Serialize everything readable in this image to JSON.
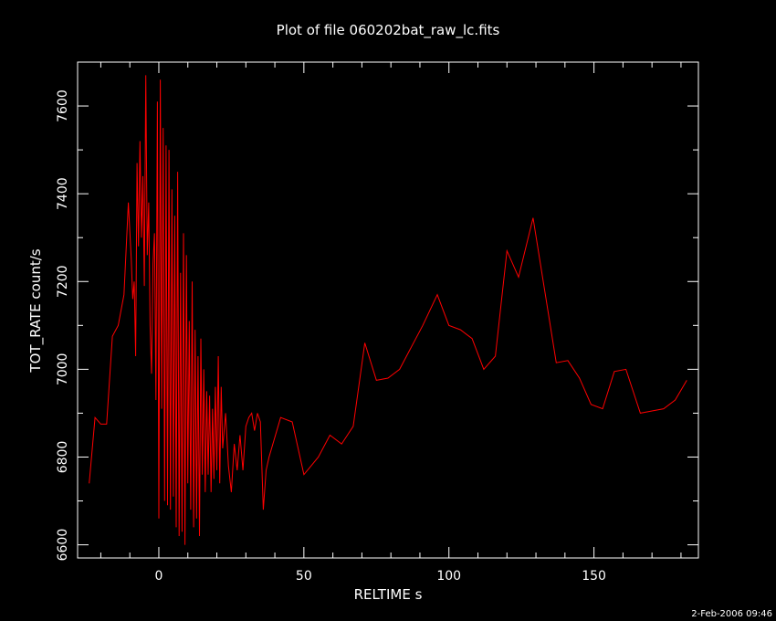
{
  "chart_data": {
    "type": "line",
    "title": "Plot of file 060202bat_raw_lc.fits",
    "xlabel": "RELTIME   s",
    "ylabel": "TOT_RATE   count/s",
    "footer": "2-Feb-2006 09:46",
    "xlim": [
      -28,
      186
    ],
    "ylim": [
      6570,
      7700
    ],
    "xticks": [
      0,
      50,
      100,
      150
    ],
    "yticks": [
      6600,
      6800,
      7000,
      7200,
      7400,
      7600
    ],
    "xtick_labels": [
      "0",
      "50",
      "100",
      "150"
    ],
    "ytick_labels": [
      "6600",
      "6800",
      "7000",
      "7200",
      "7400",
      "7600"
    ],
    "grid": false,
    "line_color": "#ff0000",
    "series": [
      {
        "x": [
          -24,
          -22,
          -20,
          -18,
          -16,
          -14,
          -12,
          -10.5,
          -9.5,
          -9,
          -8.5,
          -8,
          -7.5,
          -7,
          -6.5,
          -6,
          -5.5,
          -5,
          -4.5,
          -4,
          -3.5,
          -3,
          -2.5,
          -2,
          -1.5,
          -1,
          -0.5,
          0,
          0.5,
          1,
          1.5,
          2,
          2.5,
          3,
          3.5,
          4,
          4.5,
          5,
          5.5,
          6,
          6.5,
          7,
          7.5,
          8,
          8.5,
          9,
          9.5,
          10,
          10.5,
          11,
          11.5,
          12,
          12.5,
          13,
          13.5,
          14,
          14.5,
          15,
          15.5,
          16,
          16.5,
          17,
          17.5,
          18,
          18.5,
          19,
          19.5,
          20,
          20.5,
          21,
          21.5,
          22,
          23,
          24,
          25,
          26,
          27,
          28,
          29,
          30,
          31,
          32,
          33,
          34,
          35,
          36,
          37,
          38,
          42,
          46,
          50,
          55,
          59,
          63,
          67,
          71,
          75,
          79,
          83,
          87,
          91,
          96,
          100,
          104,
          108,
          112,
          116,
          120,
          124,
          129,
          133,
          137,
          141,
          145,
          149,
          153,
          157,
          161,
          166,
          170,
          174,
          178,
          182
        ],
        "y": [
          6740,
          6890,
          6875,
          6875,
          7075,
          7100,
          7170,
          7380,
          7250,
          7160,
          7200,
          7030,
          7470,
          7280,
          7520,
          7300,
          7440,
          7190,
          7670,
          7260,
          7380,
          7100,
          6990,
          7240,
          7310,
          6930,
          7610,
          6660,
          7660,
          6910,
          7550,
          6700,
          7510,
          6690,
          7500,
          6680,
          7410,
          6710,
          7350,
          6640,
          7450,
          6620,
          7220,
          6630,
          7310,
          6600,
          7260,
          6740,
          7110,
          6680,
          7200,
          6640,
          7090,
          6660,
          7030,
          6620,
          7070,
          6760,
          7000,
          6720,
          6950,
          6760,
          6940,
          6720,
          6910,
          6750,
          6960,
          6770,
          7030,
          6740,
          6960,
          6820,
          6900,
          6780,
          6720,
          6830,
          6770,
          6850,
          6770,
          6870,
          6890,
          6900,
          6860,
          6900,
          6880,
          6680,
          6770,
          6800,
          6890,
          6880,
          6760,
          6800,
          6850,
          6830,
          6870,
          7060,
          6975,
          6980,
          7000,
          7050,
          7100,
          7170,
          7100,
          7090,
          7070,
          7000,
          7030,
          7270,
          7210,
          7345,
          7180,
          7015,
          7020,
          6980,
          6920,
          6910,
          6995,
          7000,
          6900,
          6905,
          6910,
          6930,
          6975
        ]
      }
    ]
  }
}
